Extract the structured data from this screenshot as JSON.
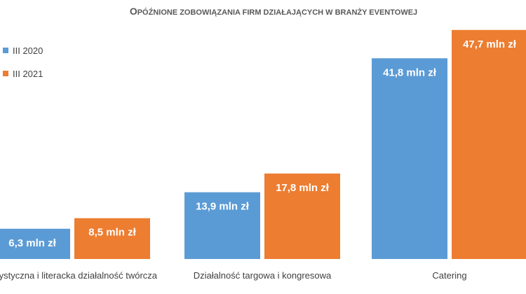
{
  "chart_data": {
    "type": "bar",
    "title_main": "Opóźnione zobowiązania firm działających w branży eventowej",
    "title_parts": [
      {
        "text": "O",
        "size": "big"
      },
      {
        "text": "PÓŹNIONE ZOBOWIĄZANIA FIRM DZIAŁAJĄCYCH W BRANŻY EVENTOWEJ",
        "size": "small"
      }
    ],
    "xlabel": "",
    "ylabel": "",
    "ylim": [
      0,
      50
    ],
    "grid": false,
    "legend_position": "top-left",
    "unit_suffix": " mln zł",
    "categories": [
      "Artystyczna i literacka działalność twórcza",
      "Działalność targowa i kongresowa",
      "Catering"
    ],
    "series": [
      {
        "name": "III 2020",
        "color": "#5B9BD5",
        "values": [
          6.3,
          13.9,
          41.8
        ],
        "labels": [
          "6,3 mln zł",
          "13,9 mln zł",
          "41,8 mln zł"
        ]
      },
      {
        "name": "III 2021",
        "color": "#ED7D31",
        "values": [
          8.5,
          17.8,
          47.7
        ],
        "labels": [
          "8,5 mln zł",
          "17,8 mln zł",
          "47,7 mln zł"
        ]
      }
    ]
  }
}
